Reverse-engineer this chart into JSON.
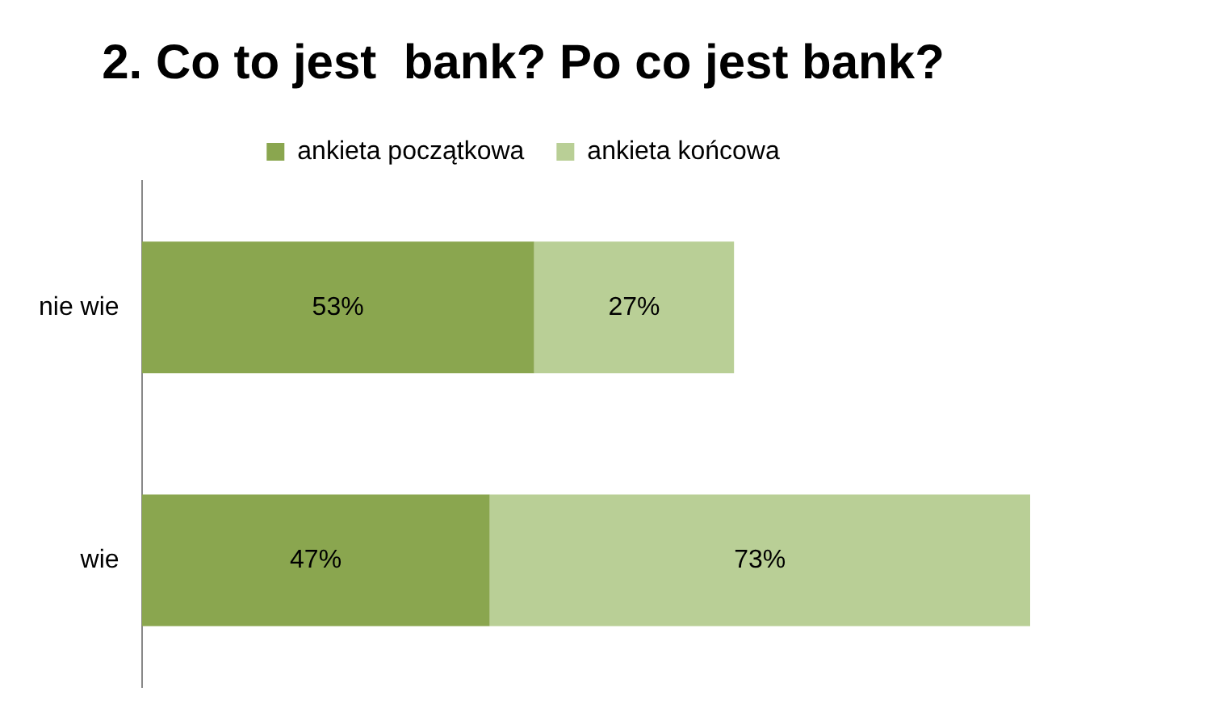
{
  "chart_data": {
    "type": "bar",
    "orientation": "horizontal",
    "stacked": true,
    "title": "2. Co to jest  bank? Po co jest bank?",
    "categories": [
      "nie wie",
      "wie"
    ],
    "legend": "top",
    "grid": false,
    "tick_labels": "y",
    "series": [
      {
        "name": "ankieta początkowa",
        "color": "#8aa64f",
        "values": [
          53,
          47
        ],
        "value_labels": [
          "53%",
          "47%"
        ]
      },
      {
        "name": "ankieta końcowa",
        "color": "#b9cf96",
        "values": [
          27,
          73
        ],
        "value_labels": [
          "27%",
          "73%"
        ]
      }
    ]
  }
}
